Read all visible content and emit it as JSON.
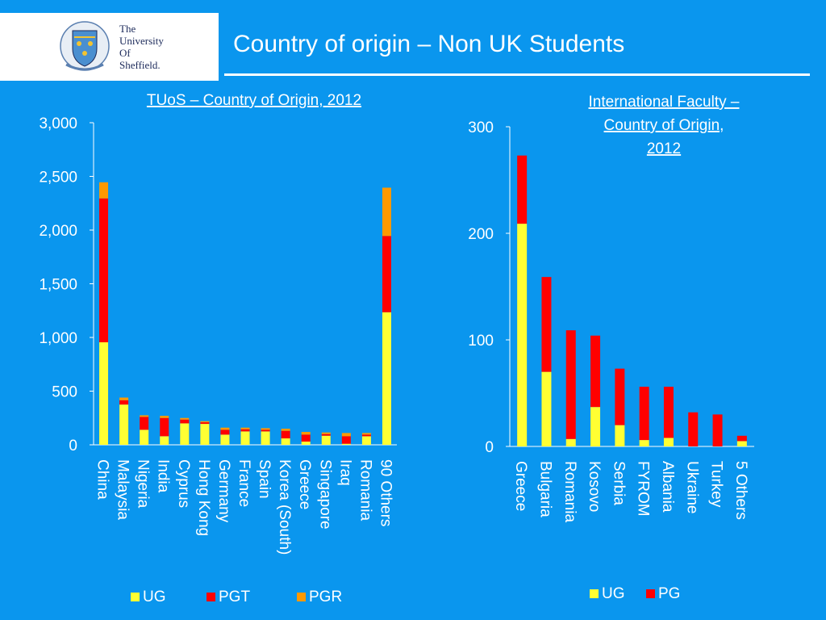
{
  "header": {
    "logo_lines": [
      "The",
      "University",
      "Of",
      "Sheffield."
    ],
    "title": "Country of origin – Non UK Students"
  },
  "colors": {
    "background": "#0a96ee",
    "UG": "#ffff33",
    "PGT": "#ff0000",
    "PGR": "#ff9900",
    "PG": "#ff0000",
    "text": "#ffffff"
  },
  "chart_data": [
    {
      "type": "bar",
      "stacked": true,
      "title": "TUoS – Country of Origin, 2012",
      "categories": [
        "China",
        "Malaysia",
        "Nigeria",
        "India",
        "Cyprus",
        "Hong Kong",
        "Germany",
        "France",
        "Spain",
        "Korea (South)",
        "Greece",
        "Singapore",
        "Iraq",
        "Romania",
        "90 Others"
      ],
      "series": [
        {
          "name": "UG",
          "values": [
            955,
            375,
            140,
            80,
            200,
            195,
            95,
            125,
            125,
            60,
            30,
            85,
            10,
            80,
            1235
          ]
        },
        {
          "name": "PGT",
          "values": [
            1340,
            40,
            120,
            170,
            35,
            15,
            45,
            20,
            15,
            70,
            65,
            15,
            70,
            15,
            710
          ]
        },
        {
          "name": "PGR",
          "values": [
            150,
            25,
            15,
            20,
            15,
            10,
            20,
            15,
            15,
            20,
            25,
            15,
            30,
            15,
            450
          ]
        }
      ],
      "ylim": [
        0,
        3000
      ],
      "yticks": [
        "0",
        "500",
        "1,000",
        "1,500",
        "2,000",
        "2,500",
        "3,000"
      ],
      "yticks_values": [
        0,
        500,
        1000,
        1500,
        2000,
        2500,
        3000
      ],
      "legend": "bottom"
    },
    {
      "type": "bar",
      "stacked": true,
      "title": "International Faculty – Country of Origin, 2012",
      "title_lines": [
        "International Faculty –",
        "Country of Origin,",
        "2012"
      ],
      "categories": [
        "Greece",
        "Bulgaria",
        "Romania",
        "Kosovo",
        "Serbia",
        "FYROM",
        "Albania",
        "Ukraine",
        "Turkey",
        "5 Others"
      ],
      "series": [
        {
          "name": "UG",
          "values": [
            209,
            70,
            7,
            37,
            20,
            6,
            8,
            0,
            0,
            5
          ]
        },
        {
          "name": "PG",
          "values": [
            64,
            89,
            102,
            67,
            53,
            50,
            48,
            32,
            30,
            5
          ]
        }
      ],
      "ylim": [
        0,
        300
      ],
      "yticks": [
        "0",
        "100",
        "200",
        "300"
      ],
      "yticks_values": [
        0,
        100,
        200,
        300
      ],
      "legend": "bottom"
    }
  ]
}
